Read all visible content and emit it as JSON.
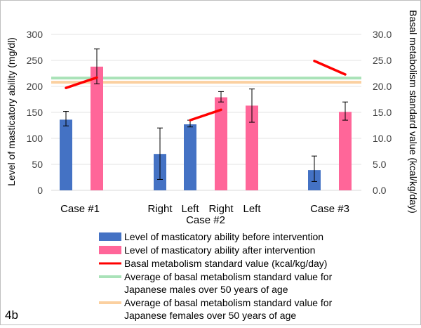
{
  "panel_label": "4b",
  "chart_data": {
    "type": "bar",
    "categories": [
      "Case #1",
      "Case #2 Right (before)",
      "Case #2 Left (before)",
      "Case #2 Right (after)",
      "Case #2 Left (after)",
      "Case #3"
    ],
    "category_labels": {
      "case1": "Case #1",
      "right": "Right",
      "left": "Left",
      "case2": "Case #2",
      "case3": "Case #3"
    },
    "series": [
      {
        "name": "Level of masticatory ability before intervention",
        "color": "#4472c4",
        "values": [
          136,
          70,
          127,
          null,
          null,
          39
        ],
        "error_low": [
          124,
          21,
          122,
          null,
          null,
          17
        ],
        "error_high": [
          152,
          120,
          135,
          null,
          null,
          66
        ]
      },
      {
        "name": "Level of masticatory ability after intervention",
        "color": "#ff6699",
        "values": [
          238,
          null,
          null,
          179,
          163,
          151
        ],
        "error_low": [
          205,
          null,
          null,
          170,
          131,
          135
        ],
        "error_high": [
          272,
          null,
          null,
          190,
          195,
          170
        ]
      }
    ],
    "bmr_lines": {
      "name": "Basal metabolism standard value (kcal/kg/day)",
      "color": "#ff0000",
      "segments": [
        {
          "case": "Case #1",
          "from": 19.7,
          "to": 21.7
        },
        {
          "case": "Case #2",
          "from": 13.5,
          "to": 15.5
        },
        {
          "case": "Case #3",
          "from": 24.9,
          "to": 22.3
        }
      ]
    },
    "reference_lines": [
      {
        "name": "Average of basal metabolism standard value for Japanese males over 50 years of age",
        "legend_lines": [
          "Average of basal metabolism standard value for",
          "Japanese males over 50 years of age"
        ],
        "value": 21.6,
        "color": "#a9e2b8"
      },
      {
        "name": "Average of basal metabolism standard value for Japanese females over 50 years of age",
        "legend_lines": [
          "Average of basal metabolism standard value for",
          "Japanese females over 50 years of age"
        ],
        "value": 20.8,
        "color": "#fbd0a0"
      }
    ],
    "ylabel": "Level of masticatory ability (mg/dl)",
    "y2label": "Basal metabolism standard value (kcal/kg/day)",
    "ylim": [
      0,
      300
    ],
    "y2lim": [
      0,
      30
    ],
    "yticks": [
      "0",
      "50",
      "100",
      "150",
      "200",
      "250",
      "300"
    ],
    "y2ticks": [
      "0.0",
      "5.0",
      "10.0",
      "15.0",
      "20.0",
      "25.0",
      "30.0"
    ],
    "grid": true,
    "legend_position": "bottom"
  }
}
